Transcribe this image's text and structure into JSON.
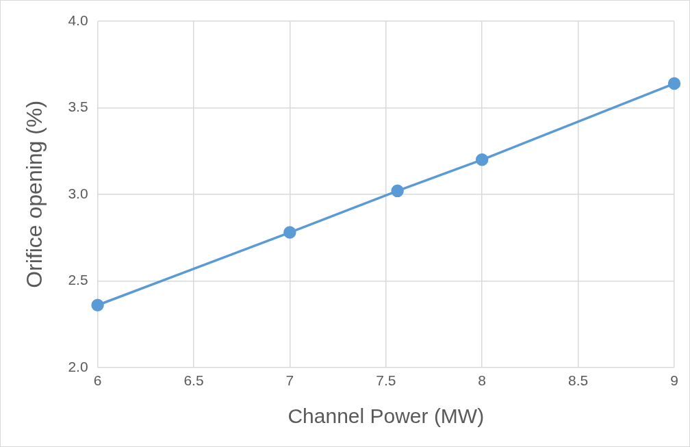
{
  "chart_data": {
    "type": "line",
    "xlabel": "Channel Power (MW)",
    "ylabel": "Orifice opening (%)",
    "x": [
      6,
      7,
      7.56,
      8,
      9
    ],
    "series": [
      {
        "color": "#5b9bd5",
        "values": [
          2.36,
          2.78,
          3.02,
          3.2,
          3.64
        ]
      }
    ],
    "xlim": [
      6,
      9
    ],
    "xticks": [
      6,
      6.5,
      7,
      7.5,
      8,
      8.5,
      9
    ],
    "ylim": [
      2,
      4
    ],
    "yticks": [
      {
        "value": 2,
        "label": "2.0"
      },
      {
        "value": 2.5,
        "label": "2.5"
      },
      {
        "value": 3,
        "label": "3.0"
      },
      {
        "value": 3.5,
        "label": "3.5"
      },
      {
        "value": 4,
        "label": "4.0"
      }
    ],
    "grid": true,
    "marker": "circle",
    "line_style": "solid",
    "legend": false
  }
}
